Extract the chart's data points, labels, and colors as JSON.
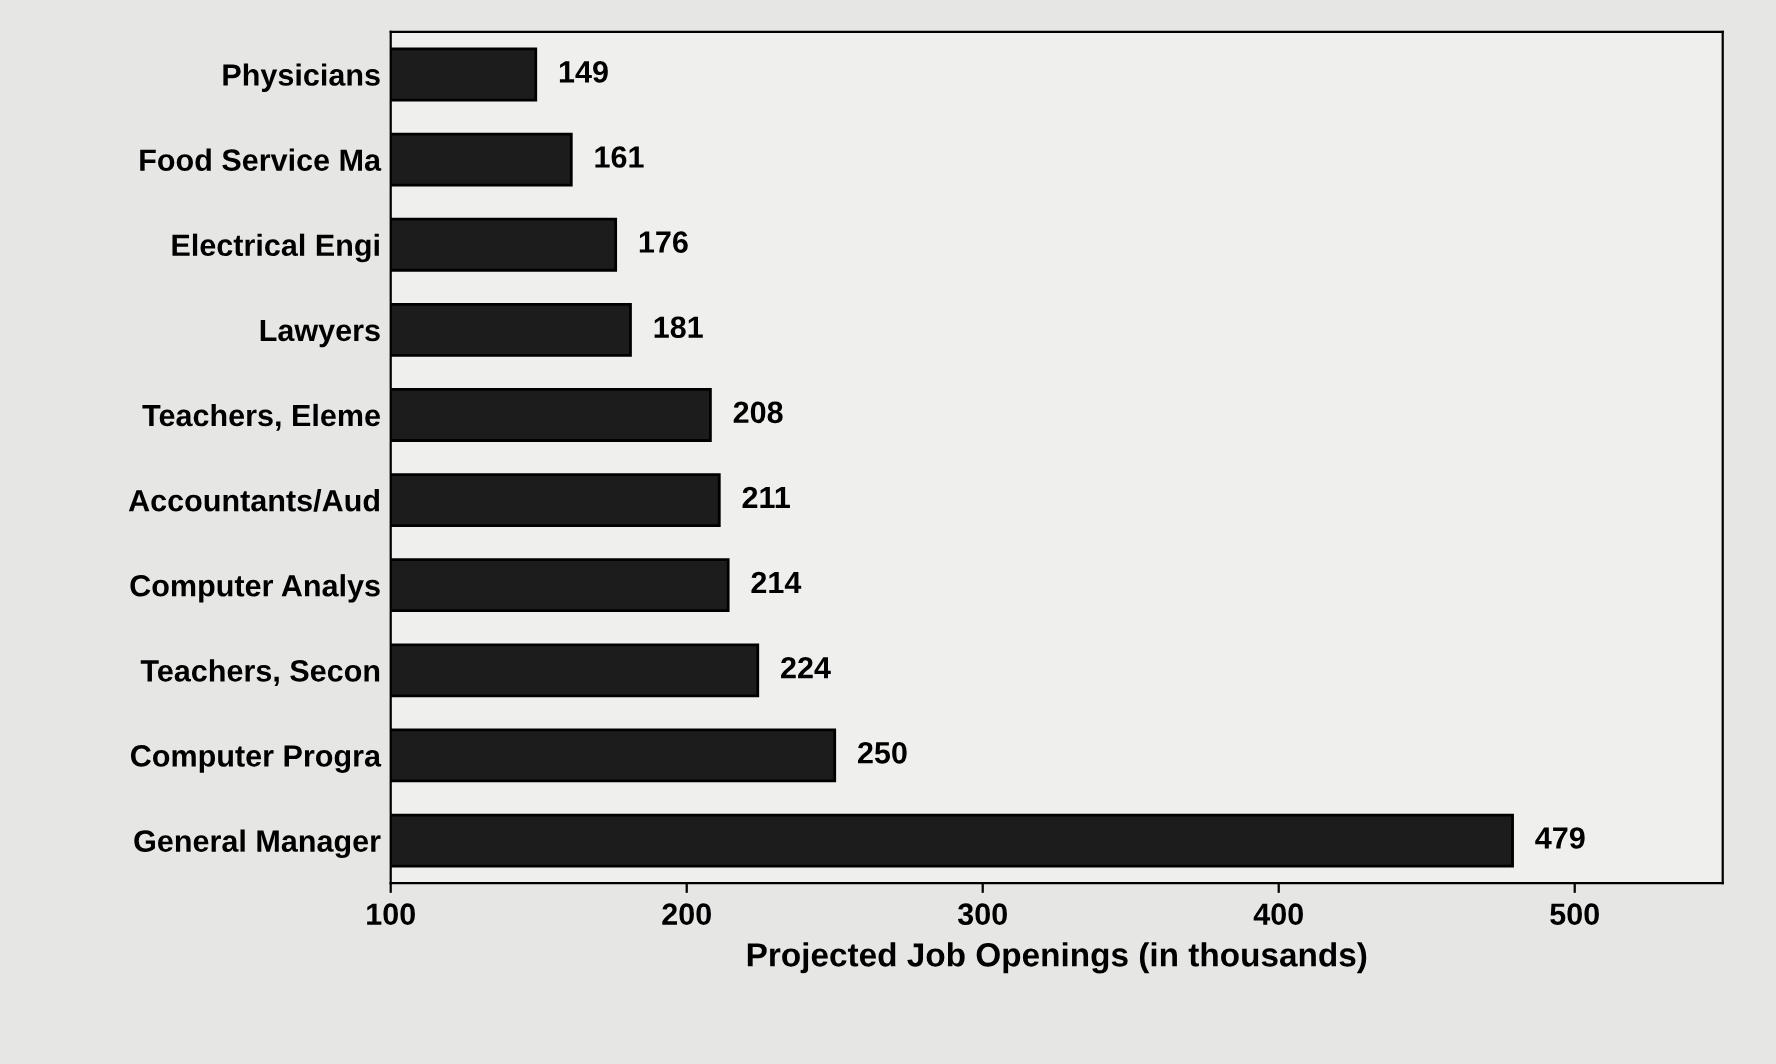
{
  "chart_data": {
    "type": "bar",
    "orientation": "horizontal",
    "xlabel": "Projected Job Openings (in thousands)",
    "categories": [
      "Physicians",
      "Food Service Ma",
      "Electrical Engi",
      "Lawyers",
      "Teachers, Eleme",
      "Accountants/Aud",
      "Computer Analys",
      "Teachers, Secon",
      "Computer Progra",
      "General Manager"
    ],
    "values": [
      149,
      161,
      176,
      181,
      208,
      211,
      214,
      224,
      250,
      479
    ],
    "color": "#1c1c1c",
    "xlim": [
      100,
      550
    ],
    "xticks": [
      100,
      200,
      300,
      400,
      500
    ],
    "data_labels": true,
    "grid": false,
    "legend": false
  }
}
